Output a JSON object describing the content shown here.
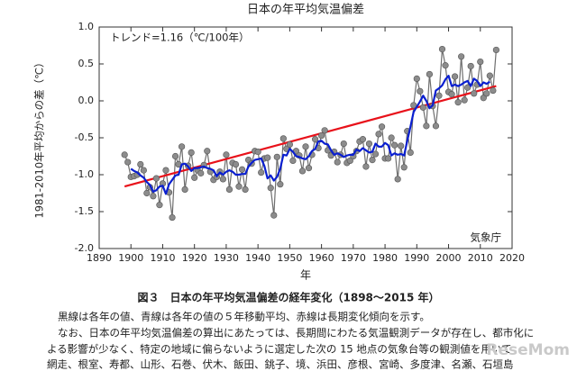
{
  "chart_data": {
    "type": "line",
    "title": "日本の年平均気温偏差",
    "xlabel": "年",
    "ylabel": "1981-2010年平均からの差（℃）",
    "annotation": "トレンド=1.16（℃/100年）",
    "source": "気象庁",
    "xlim": [
      1890,
      2020
    ],
    "xticks": [
      1890,
      1900,
      1910,
      1920,
      1930,
      1940,
      1950,
      1960,
      1970,
      1980,
      1990,
      2000,
      2010,
      2020
    ],
    "ylim": [
      -2,
      1
    ],
    "yticks": [
      {
        "value": -2,
        "label": "-2.0"
      },
      -1.5,
      {
        "value": -1,
        "label": "-1.0"
      },
      -0.5,
      {
        "value": 0,
        "label": "0.0"
      },
      0.5,
      {
        "value": 1,
        "label": "1.0"
      }
    ],
    "x": [
      1898,
      1899,
      1900,
      1901,
      1902,
      1903,
      1904,
      1905,
      1906,
      1907,
      1908,
      1909,
      1910,
      1911,
      1912,
      1913,
      1914,
      1915,
      1916,
      1917,
      1918,
      1919,
      1920,
      1921,
      1922,
      1923,
      1924,
      1925,
      1926,
      1927,
      1928,
      1929,
      1930,
      1931,
      1932,
      1933,
      1934,
      1935,
      1936,
      1937,
      1938,
      1939,
      1940,
      1941,
      1942,
      1943,
      1944,
      1945,
      1946,
      1947,
      1948,
      1949,
      1950,
      1951,
      1952,
      1953,
      1954,
      1955,
      1956,
      1957,
      1958,
      1959,
      1960,
      1961,
      1962,
      1963,
      1964,
      1965,
      1966,
      1967,
      1968,
      1969,
      1970,
      1971,
      1972,
      1973,
      1974,
      1975,
      1976,
      1977,
      1978,
      1979,
      1980,
      1981,
      1982,
      1983,
      1984,
      1985,
      1986,
      1987,
      1988,
      1989,
      1990,
      1991,
      1992,
      1993,
      1994,
      1995,
      1996,
      1997,
      1998,
      1999,
      2000,
      2001,
      2002,
      2003,
      2004,
      2005,
      2006,
      2007,
      2008,
      2009,
      2010,
      2011,
      2012,
      2013,
      2014,
      2015
    ],
    "series": [
      {
        "color": "#6e6e6e",
        "values": [
          -0.73,
          -0.83,
          -1.03,
          -1.02,
          -1.0,
          -0.86,
          -0.94,
          -1.25,
          -1.17,
          -1.29,
          -1.05,
          -1.41,
          -1.12,
          -0.94,
          -1.24,
          -1.58,
          -0.75,
          -0.86,
          -0.62,
          -1.2,
          -0.88,
          -0.7,
          -1.04,
          -0.94,
          -0.98,
          -0.87,
          -0.68,
          -0.96,
          -1.07,
          -1.03,
          -0.96,
          -1.06,
          -0.73,
          -1.2,
          -0.84,
          -0.86,
          -1.16,
          -0.93,
          -1.2,
          -0.8,
          -0.85,
          -0.68,
          -0.69,
          -0.97,
          -0.78,
          -0.77,
          -1.18,
          -1.55,
          -0.76,
          -1.13,
          -0.51,
          -0.65,
          -0.59,
          -0.81,
          -0.68,
          -0.74,
          -0.95,
          -0.62,
          -0.91,
          -0.73,
          -0.52,
          -0.64,
          -0.47,
          -0.4,
          -0.67,
          -0.74,
          -0.69,
          -0.83,
          -0.73,
          -0.58,
          -0.84,
          -0.81,
          -0.75,
          -0.68,
          -0.55,
          -0.52,
          -0.89,
          -0.58,
          -0.8,
          -0.72,
          -0.45,
          -0.35,
          -0.78,
          -0.78,
          -0.5,
          -0.6,
          -1.06,
          -0.61,
          -0.9,
          -0.41,
          -0.7,
          -0.06,
          0.3,
          0.13,
          -0.09,
          -0.34,
          0.36,
          -0.07,
          -0.34,
          0.07,
          0.7,
          0.48,
          0.12,
          0.09,
          0.33,
          -0.02,
          0.6,
          0.01,
          0.18,
          0.47,
          0.1,
          0.22,
          0.53,
          0.04,
          0.1,
          0.34,
          0.14,
          0.69
        ],
        "markers": true
      },
      {
        "color": "#0a1fd0",
        "values": [
          null,
          null,
          -0.92,
          -0.95,
          -0.97,
          -1.01,
          -1.04,
          -1.1,
          -1.14,
          -1.23,
          -1.21,
          -1.16,
          -1.15,
          -1.26,
          -1.13,
          -1.07,
          -1.01,
          -1.0,
          -0.86,
          -0.85,
          -0.89,
          -0.95,
          -0.91,
          -0.91,
          -0.9,
          -0.89,
          -0.91,
          -0.92,
          -0.94,
          -1.02,
          -0.97,
          -1.0,
          -0.96,
          -0.94,
          -0.96,
          -1.0,
          -1.0,
          -0.99,
          -0.99,
          -0.89,
          -0.84,
          -0.8,
          -0.79,
          -0.78,
          -0.88,
          -1.05,
          -1.01,
          -1.08,
          -1.03,
          -0.92,
          -0.73,
          -0.74,
          -0.65,
          -0.69,
          -0.75,
          -0.76,
          -0.78,
          -0.79,
          -0.75,
          -0.68,
          -0.65,
          -0.55,
          -0.54,
          -0.58,
          -0.59,
          -0.67,
          -0.73,
          -0.71,
          -0.73,
          -0.76,
          -0.74,
          -0.73,
          -0.73,
          -0.66,
          -0.68,
          -0.64,
          -0.67,
          -0.7,
          -0.69,
          -0.58,
          -0.62,
          -0.62,
          -0.57,
          -0.6,
          -0.74,
          -0.71,
          -0.73,
          -0.72,
          -0.74,
          -0.54,
          -0.35,
          -0.15,
          -0.08,
          -0.01,
          0.07,
          0.0,
          -0.1,
          -0.06,
          0.14,
          0.17,
          0.21,
          0.29,
          0.34,
          0.2,
          0.22,
          0.2,
          0.22,
          0.25,
          0.27,
          0.2,
          0.3,
          0.27,
          0.2,
          0.25,
          0.23,
          0.26,
          null,
          null
        ],
        "markers": false
      }
    ],
    "trend": {
      "color": "#e8111a",
      "x": [
        1898,
        2015
      ],
      "values": [
        -1.16,
        0.2
      ]
    },
    "caption": "図３　日本の年平均気温偏差の経年変化（1898～2015 年）",
    "notes": [
      "黒線は各年の値、青線は各年の値の５年移動平均、赤線は長期変化傾向を示す。",
      "なお、日本の年平均気温偏差の算出にあたっては、長期間にわたる気温観測データが存在し、都市化に",
      "よる影響が少なく、特定の地域に偏らないように選定した次の 15 地点の気象台等の観測値を用いて",
      "網走、根室、寿都、山形、石巻、伏木、飯田、銚子、境、浜田、彦根、宮崎、多度津、名瀬、石垣島"
    ],
    "watermark": "ReseMom"
  }
}
